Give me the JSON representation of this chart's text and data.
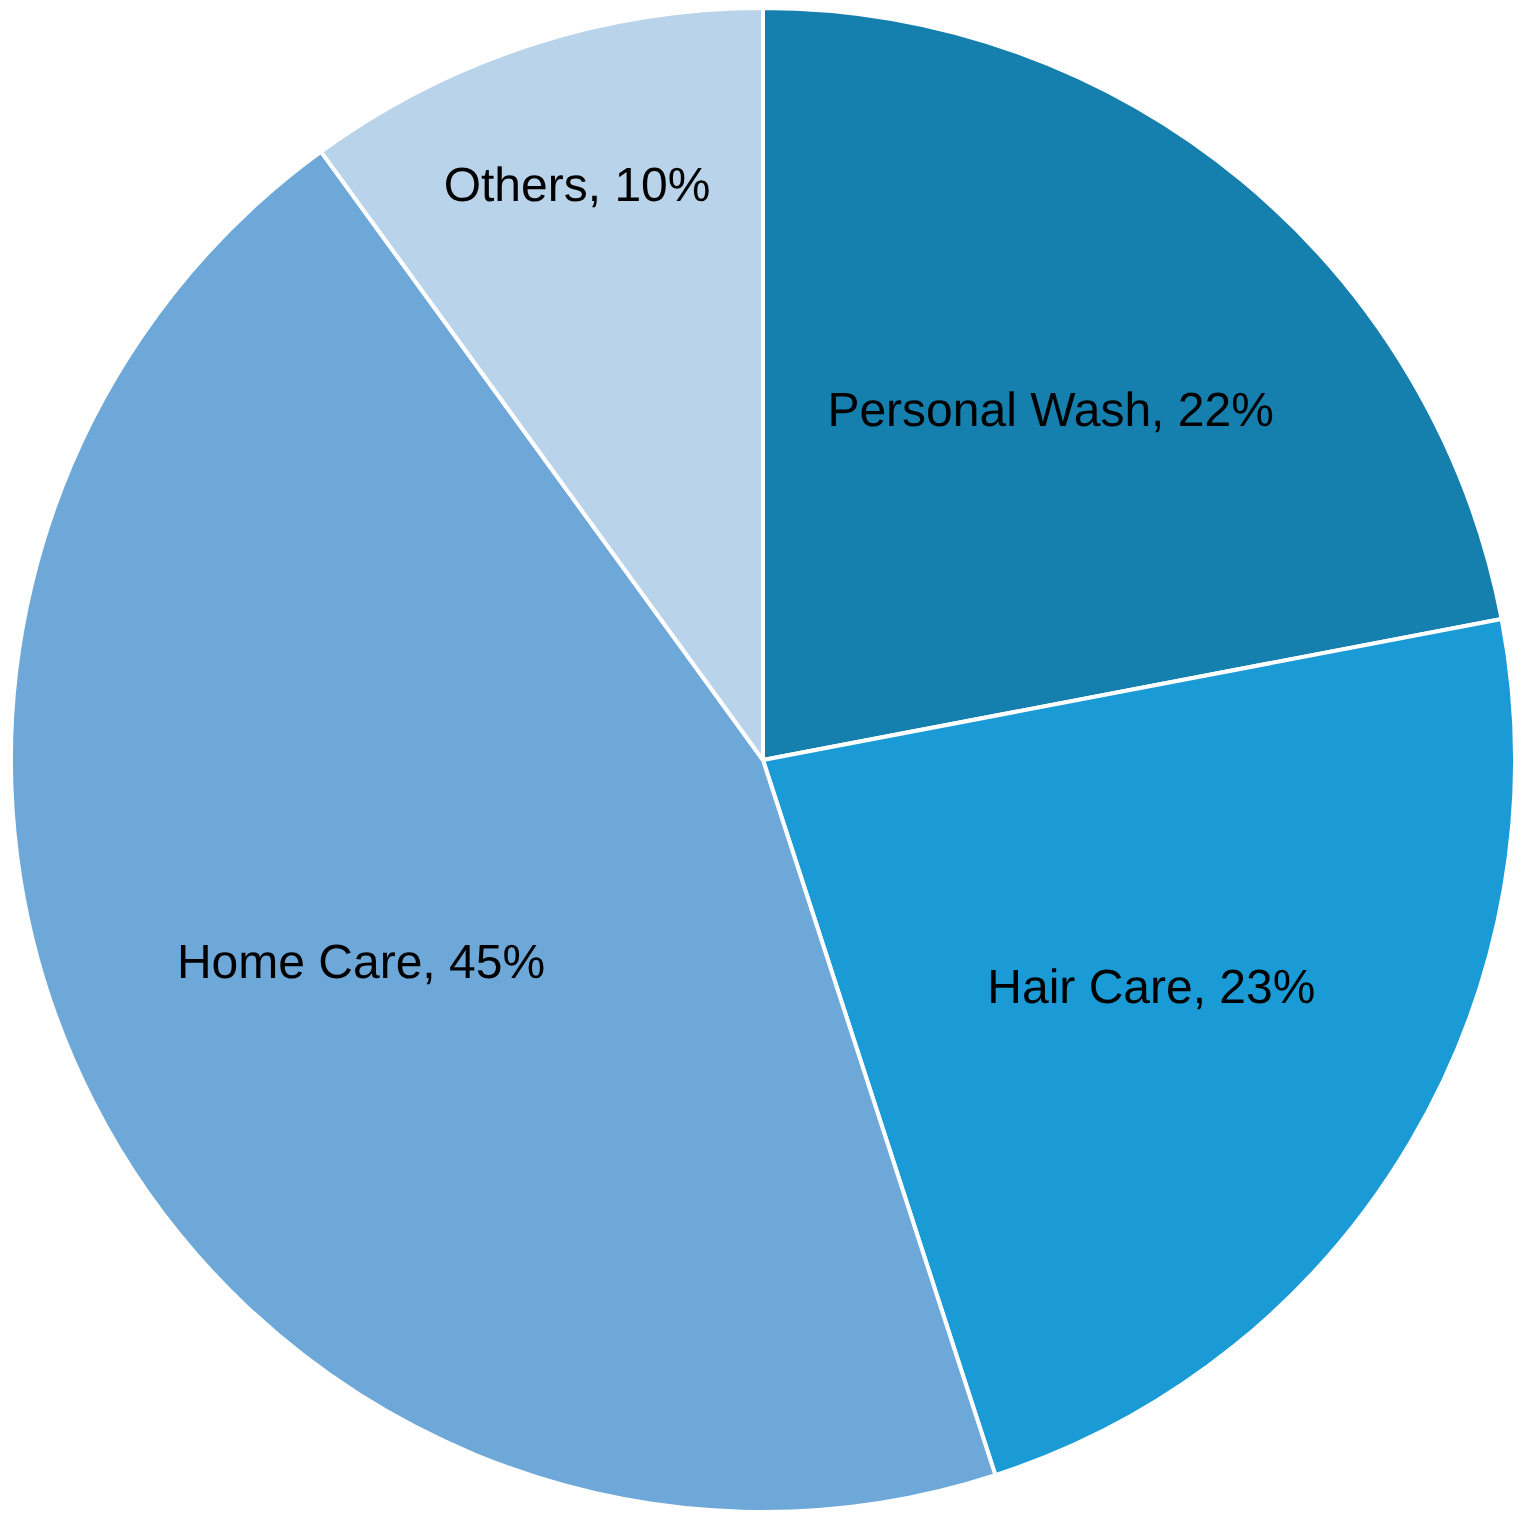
{
  "chart_data": {
    "type": "pie",
    "categories": [
      "Personal Wash",
      "Hair Care",
      "Home Care",
      "Others"
    ],
    "values": [
      22,
      23,
      45,
      10
    ],
    "value_labels": [
      "22%",
      "23%",
      "45%",
      "10%"
    ],
    "colors": [
      "#157fae",
      "#1b9bd5",
      "#6ea8d8",
      "#b9d3ea"
    ],
    "legend": false
  }
}
